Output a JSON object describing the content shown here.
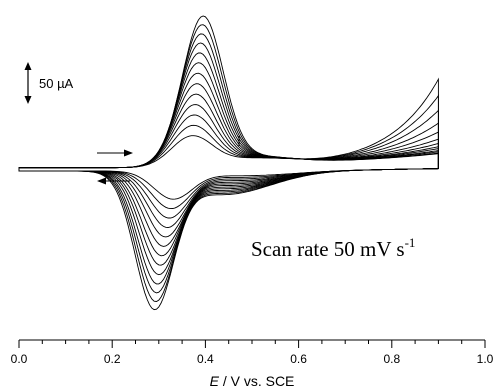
{
  "chart_data": {
    "type": "line",
    "title": "",
    "xlabel": {
      "italic": "E",
      "rest": " / V vs. SCE"
    },
    "ylabel": "",
    "xlim": [
      0.0,
      1.0
    ],
    "ylim_uA": [
      -230,
      250
    ],
    "xticks": [
      "0.0",
      "0.2",
      "0.4",
      "0.6",
      "0.8",
      "1.0"
    ],
    "scale_bar": {
      "label": "50 µA",
      "value_uA": 50
    },
    "annotation": {
      "text": "Scan rate 50 mV s",
      "superscript": "-1"
    },
    "grid": false,
    "legend": "none",
    "x_range_scanned": [
      0.0,
      0.9
    ],
    "cycles": [
      {
        "cycle": 1,
        "anodic_peak": {
          "E": 0.37,
          "i": 46
        },
        "cathodic_peak": {
          "E": 0.33,
          "i": -42
        },
        "anodic_end_i": 139
      },
      {
        "cycle": 2,
        "anodic_peak": {
          "E": 0.372,
          "i": 62
        },
        "cathodic_peak": {
          "E": 0.325,
          "i": -56
        },
        "anodic_end_i": 113
      },
      {
        "cycle": 3,
        "anodic_peak": {
          "E": 0.374,
          "i": 78
        },
        "cathodic_peak": {
          "E": 0.321,
          "i": -70
        },
        "anodic_end_i": 90
      },
      {
        "cycle": 4,
        "anodic_peak": {
          "E": 0.376,
          "i": 94
        },
        "cathodic_peak": {
          "E": 0.317,
          "i": -84
        },
        "anodic_end_i": 70
      },
      {
        "cycle": 5,
        "anodic_peak": {
          "E": 0.378,
          "i": 110
        },
        "cathodic_peak": {
          "E": 0.313,
          "i": -98
        },
        "anodic_end_i": 56
      },
      {
        "cycle": 6,
        "anodic_peak": {
          "E": 0.38,
          "i": 126
        },
        "cathodic_peak": {
          "E": 0.309,
          "i": -112
        },
        "anodic_end_i": 45
      },
      {
        "cycle": 7,
        "anodic_peak": {
          "E": 0.382,
          "i": 142
        },
        "cathodic_peak": {
          "E": 0.305,
          "i": -126
        },
        "anodic_end_i": 38
      },
      {
        "cycle": 8,
        "anodic_peak": {
          "E": 0.384,
          "i": 158
        },
        "cathodic_peak": {
          "E": 0.302,
          "i": -140
        },
        "anodic_end_i": 33
      },
      {
        "cycle": 9,
        "anodic_peak": {
          "E": 0.386,
          "i": 173
        },
        "cathodic_peak": {
          "E": 0.299,
          "i": -154
        },
        "anodic_end_i": 30
      },
      {
        "cycle": 10,
        "anodic_peak": {
          "E": 0.388,
          "i": 188
        },
        "cathodic_peak": {
          "E": 0.296,
          "i": -168
        },
        "anodic_end_i": 27
      },
      {
        "cycle": 11,
        "anodic_peak": {
          "E": 0.39,
          "i": 202
        },
        "cathodic_peak": {
          "E": 0.294,
          "i": -181
        },
        "anodic_end_i": 25
      },
      {
        "cycle": 12,
        "anodic_peak": {
          "E": 0.392,
          "i": 216
        },
        "cathodic_peak": {
          "E": 0.292,
          "i": -194
        },
        "anodic_end_i": 23
      },
      {
        "cycle": 13,
        "anodic_peak": {
          "E": 0.394,
          "i": 229
        },
        "cathodic_peak": {
          "E": 0.29,
          "i": -206
        },
        "anodic_end_i": 22
      }
    ]
  }
}
